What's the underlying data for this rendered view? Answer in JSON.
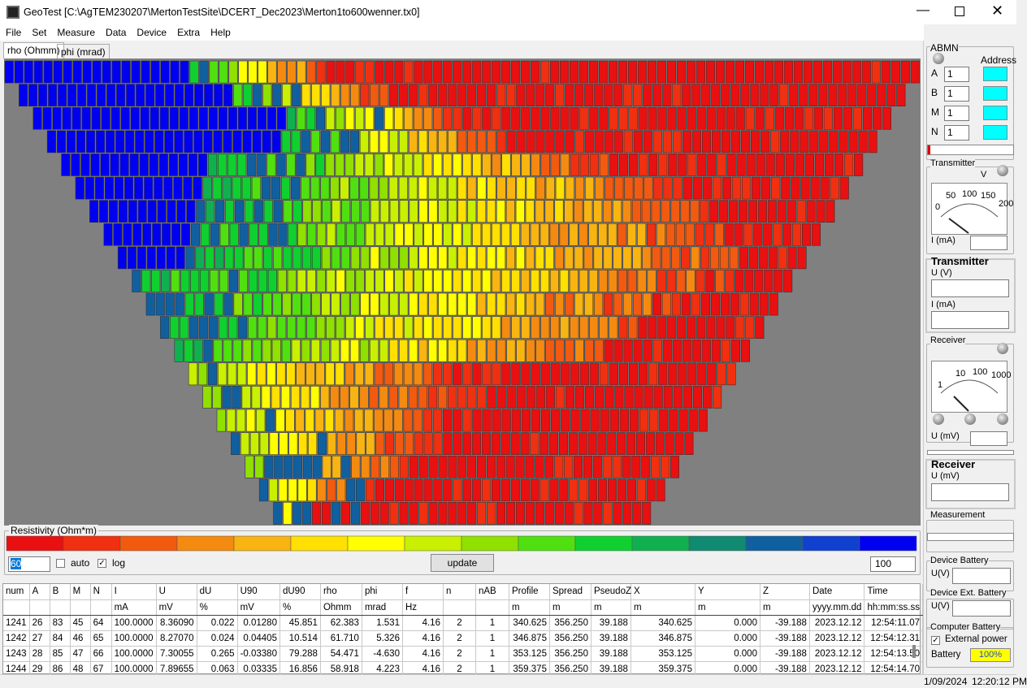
{
  "window": {
    "title": "GeoTest [C:\\AgTEM230207\\MertonTestSite\\DCERT_Dec2023\\Merton1to600wenner.tx0]"
  },
  "menu": [
    "File",
    "Set",
    "Measure",
    "Data",
    "Device",
    "Extra",
    "Help"
  ],
  "tabs": [
    "rho (Ohmm)",
    "phi (mrad)"
  ],
  "colorbar": {
    "title": "Resistivity (Ohm*m)",
    "min": "60",
    "auto": "auto",
    "log": "log",
    "update": "update",
    "max": "100"
  },
  "side": {
    "abmn": {
      "title": "ABMN",
      "address": "Address",
      "rows": [
        {
          "label": "A",
          "value": "1"
        },
        {
          "label": "B",
          "value": "1"
        },
        {
          "label": "M",
          "value": "1"
        },
        {
          "label": "N",
          "value": "1"
        }
      ]
    },
    "transmitter_meter": {
      "title": "Transmitter",
      "unit": "V",
      "scale": [
        "0",
        "50",
        "100",
        "150",
        "200"
      ],
      "current": "I (mA)"
    },
    "transmitter": {
      "title": "Transmitter",
      "voltage": "U (V)",
      "current": "I (mA)"
    },
    "receiver_meter": {
      "title": "Receiver",
      "scale": [
        "1",
        "10",
        "100",
        "1000"
      ],
      "voltage": "U (mV)"
    },
    "receiver": {
      "title": "Receiver",
      "voltage": "U (mV)"
    },
    "measurement": "Measurement",
    "device_battery": {
      "title": "Device Battery",
      "voltage": "U(V)"
    },
    "device_ext_battery": {
      "title": "Device Ext. Battery",
      "voltage": "U(V)"
    },
    "computer_battery": {
      "title": "Computer Battery",
      "external": "External power",
      "battery": "Battery",
      "level": "100%"
    }
  },
  "status": {
    "date": "1/09/2024",
    "time": "12:20:12 PM"
  },
  "table": {
    "headers": [
      "num",
      "A",
      "B",
      "M",
      "N",
      "I",
      "U",
      "dU",
      "U90",
      "dU90",
      "rho",
      "phi",
      "f",
      "n",
      "nAB",
      "Profile",
      "Spread",
      "PseudoZ",
      "X",
      "Y",
      "Z",
      "Date",
      "Time"
    ],
    "units": [
      null,
      null,
      null,
      null,
      null,
      "mA",
      "mV",
      "%",
      "mV",
      "%",
      "Ohmm",
      "mrad",
      "Hz",
      null,
      null,
      "m",
      "m",
      "m",
      "m",
      "m",
      "m",
      "yyyy.mm.dd",
      "hh:mm:ss.ss"
    ],
    "rows": [
      [
        "1241",
        "26",
        "83",
        "45",
        "64",
        "100.0000",
        "8.36090",
        "0.022",
        "0.01280",
        "45.851",
        "62.383",
        "1.531",
        "4.16",
        "2",
        "1",
        "340.625",
        "356.250",
        "39.188",
        "340.625",
        "0.000",
        "-39.188",
        "2023.12.12",
        "12:54:11.07"
      ],
      [
        "1242",
        "27",
        "84",
        "46",
        "65",
        "100.0000",
        "8.27070",
        "0.024",
        "0.04405",
        "10.514",
        "61.710",
        "5.326",
        "4.16",
        "2",
        "1",
        "346.875",
        "356.250",
        "39.188",
        "346.875",
        "0.000",
        "-39.188",
        "2023.12.12",
        "12:54:12.31"
      ],
      [
        "1243",
        "28",
        "85",
        "47",
        "66",
        "100.0000",
        "7.30055",
        "0.265",
        "-0.03380",
        "79.288",
        "54.471",
        "-4.630",
        "4.16",
        "2",
        "1",
        "353.125",
        "356.250",
        "39.188",
        "353.125",
        "0.000",
        "-39.188",
        "2023.12.12",
        "12:54:13.50"
      ],
      [
        "1244",
        "29",
        "86",
        "48",
        "67",
        "100.0000",
        "7.89655",
        "0.063",
        "0.03335",
        "16.856",
        "58.918",
        "4.223",
        "4.16",
        "2",
        "1",
        "359.375",
        "356.250",
        "39.188",
        "359.375",
        "0.000",
        "-39.188",
        "2023.12.12",
        "12:54:14.70"
      ]
    ]
  }
}
